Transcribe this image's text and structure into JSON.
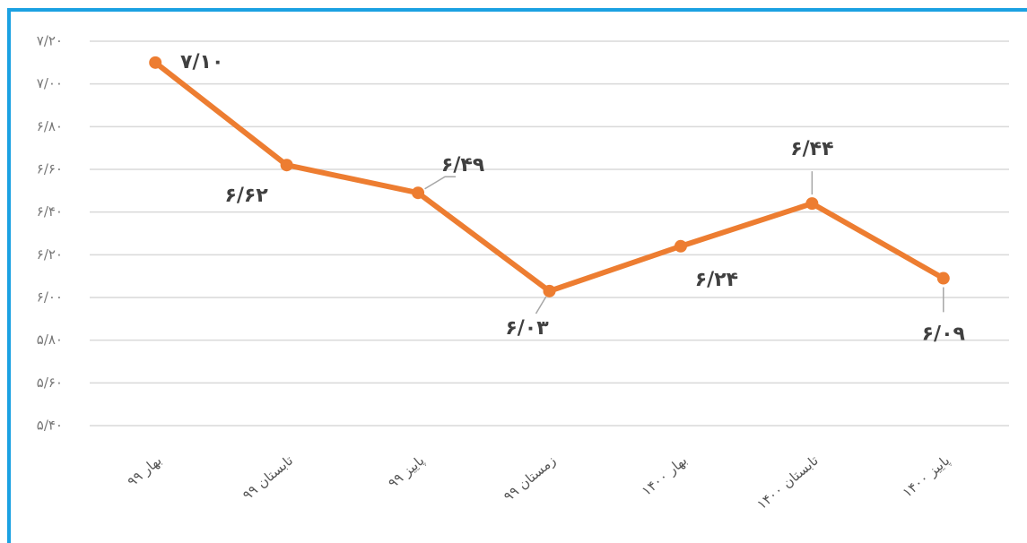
{
  "chart_data": {
    "type": "line",
    "categories": [
      "بهار ۹۹",
      "تابستان ۹۹",
      "پاییز ۹۹",
      "زمستان ۹۹",
      "بهار ۱۴۰۰",
      "تابستان ۱۴۰۰",
      "پاییز ۱۴۰۰"
    ],
    "values": [
      7.1,
      6.62,
      6.49,
      6.03,
      6.24,
      6.44,
      6.09
    ],
    "value_labels": [
      "۷/۱۰",
      "۶/۶۲",
      "۶/۴۹",
      "۶/۰۳",
      "۶/۲۴",
      "۶/۴۴",
      "۶/۰۹"
    ],
    "color": "#ed7d31",
    "ylim": [
      5.4,
      7.2
    ],
    "yticks": [
      {
        "value": 5.4,
        "label": "۵/۴۰"
      },
      {
        "value": 5.6,
        "label": "۵/۶۰"
      },
      {
        "value": 5.8,
        "label": "۵/۸۰"
      },
      {
        "value": 6.0,
        "label": "۶/۰۰"
      },
      {
        "value": 6.2,
        "label": "۶/۲۰"
      },
      {
        "value": 6.4,
        "label": "۶/۴۰"
      },
      {
        "value": 6.6,
        "label": "۶/۶۰"
      },
      {
        "value": 6.8,
        "label": "۶/۸۰"
      },
      {
        "value": 7.0,
        "label": "۷/۰۰"
      },
      {
        "value": 7.2,
        "label": "۷/۲۰"
      }
    ],
    "grid": true
  }
}
